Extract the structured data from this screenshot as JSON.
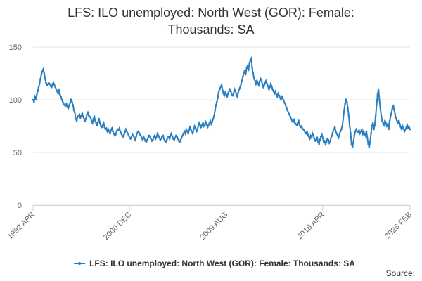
{
  "chart_data": {
    "type": "line",
    "title": "LFS: ILO unemployed: North West (GOR): Female: Thousands: SA",
    "source": "Source:",
    "categories": [
      "1992 APR",
      null,
      null,
      null,
      null,
      null,
      null,
      null,
      null,
      null,
      null,
      null,
      null,
      null,
      null,
      null,
      null,
      null,
      null,
      null,
      null,
      null,
      null,
      null,
      null,
      null,
      null,
      null,
      null,
      null,
      null,
      null,
      null,
      null,
      null,
      null,
      null,
      null,
      null,
      null,
      null,
      null,
      null,
      null,
      null,
      null,
      null,
      null,
      null,
      null,
      null,
      null,
      null,
      null,
      null,
      null,
      null,
      null,
      null,
      null,
      null,
      null,
      null,
      null,
      null,
      null,
      null,
      null,
      null,
      null,
      null,
      null,
      null,
      null,
      null,
      null,
      null,
      null,
      null,
      null,
      null,
      null,
      null,
      null,
      null,
      null,
      null,
      null,
      null,
      null,
      null,
      null,
      null,
      null,
      null,
      null,
      null,
      null,
      null,
      null,
      null,
      null,
      null,
      null,
      "2000 DEC",
      null,
      null,
      null,
      null,
      null,
      null,
      null,
      null,
      null,
      null,
      null,
      null,
      null,
      null,
      null,
      null,
      null,
      null,
      null,
      null,
      null,
      null,
      null,
      null,
      null,
      null,
      null,
      null,
      null,
      null,
      null,
      null,
      null,
      null,
      null,
      null,
      null,
      null,
      null,
      null,
      null,
      null,
      null,
      null,
      null,
      null,
      null,
      null,
      null,
      null,
      null,
      null,
      null,
      null,
      null,
      null,
      null,
      null,
      null,
      null,
      null,
      null,
      null,
      null,
      null,
      null,
      null,
      null,
      null,
      null,
      null,
      null,
      null,
      null,
      null,
      null,
      null,
      null,
      null,
      null,
      null,
      null,
      null,
      null,
      null,
      null,
      null,
      null,
      null,
      null,
      null,
      null,
      null,
      null,
      null,
      null,
      null,
      null,
      null,
      null,
      null,
      null,
      null,
      "2009 AUG",
      null,
      null,
      null,
      null,
      null,
      null,
      null,
      null,
      null,
      null,
      null,
      null,
      null,
      null,
      null,
      null,
      null,
      null,
      null,
      null,
      null,
      null,
      null,
      null,
      null,
      null,
      null,
      null,
      null,
      null,
      null,
      null,
      null,
      null,
      null,
      null,
      null,
      null,
      null,
      null,
      null,
      null,
      null,
      null,
      null,
      null,
      null,
      null,
      null,
      null,
      null,
      null,
      null,
      null,
      null,
      null,
      null,
      null,
      null,
      null,
      null,
      null,
      null,
      null,
      null,
      null,
      null,
      null,
      null,
      null,
      null,
      null,
      null,
      null,
      null,
      null,
      null,
      null,
      null,
      null,
      null,
      null,
      null,
      null,
      null,
      null,
      null,
      null,
      null,
      null,
      null,
      null,
      null,
      null,
      null,
      null,
      null,
      null,
      null,
      null,
      null,
      null,
      null,
      "2018 APR",
      null,
      null,
      null,
      null,
      null,
      null,
      null,
      null,
      null,
      null,
      null,
      null,
      null,
      null,
      null,
      null,
      null,
      null,
      null,
      null,
      null,
      null,
      null,
      null,
      null,
      null,
      null,
      null,
      null,
      null,
      null,
      null,
      null,
      null,
      null,
      null,
      null,
      null,
      null,
      null,
      null,
      null,
      null,
      null,
      null,
      null,
      null,
      null,
      null,
      null,
      null,
      null,
      null,
      null,
      null,
      null,
      null,
      null,
      null,
      null,
      null,
      null,
      null,
      null,
      null,
      null,
      null,
      null,
      null,
      null,
      null,
      null,
      null,
      null,
      null,
      null,
      null,
      null,
      null,
      null,
      null,
      null,
      null,
      null,
      null,
      null,
      null,
      null,
      null,
      null,
      null,
      null,
      null,
      "2026 FEB"
    ],
    "series": [
      {
        "name": "LFS: ILO unemployed: North West (GOR): Female: Thousands: SA",
        "color": "#2a7fc1",
        "values": [
          100,
          98,
          103,
          101,
          105,
          108,
          112,
          115,
          120,
          124,
          127,
          129,
          125,
          120,
          116,
          114,
          115,
          116,
          115,
          113,
          112,
          115,
          116,
          114,
          112,
          110,
          108,
          106,
          110,
          105,
          103,
          100,
          98,
          96,
          95,
          94,
          96,
          93,
          92,
          95,
          97,
          100,
          98,
          95,
          90,
          88,
          82,
          80,
          84,
          85,
          86,
          83,
          85,
          87,
          84,
          82,
          80,
          82,
          86,
          88,
          85,
          84,
          83,
          80,
          78,
          82,
          84,
          80,
          78,
          76,
          79,
          82,
          78,
          75,
          74,
          76,
          78,
          74,
          72,
          73,
          70,
          72,
          70,
          68,
          71,
          73,
          70,
          68,
          66,
          67,
          70,
          72,
          71,
          73,
          70,
          68,
          66,
          65,
          67,
          69,
          72,
          70,
          68,
          66,
          64,
          63,
          65,
          67,
          66,
          64,
          62,
          65,
          68,
          70,
          69,
          67,
          66,
          64,
          62,
          65,
          63,
          61,
          60,
          62,
          64,
          66,
          65,
          63,
          61,
          62,
          64,
          66,
          63,
          65,
          68,
          66,
          64,
          62,
          63,
          65,
          66,
          63,
          61,
          60,
          62,
          64,
          65,
          63,
          66,
          68,
          65,
          63,
          62,
          64,
          66,
          65,
          63,
          61,
          60,
          62,
          64,
          66,
          68,
          70,
          68,
          72,
          70,
          68,
          71,
          74,
          72,
          70,
          68,
          72,
          75,
          73,
          70,
          72,
          75,
          78,
          76,
          74,
          76,
          78,
          75,
          77,
          79,
          76,
          74,
          76,
          78,
          80,
          77,
          79,
          82,
          85,
          90,
          95,
          98,
          102,
          108,
          110,
          112,
          114,
          110,
          106,
          104,
          107,
          105,
          103,
          106,
          108,
          110,
          108,
          105,
          104,
          106,
          110,
          108,
          105,
          103,
          107,
          110,
          112,
          115,
          118,
          122,
          125,
          128,
          124,
          130,
          132,
          128,
          135,
          137,
          139,
          130,
          125,
          120,
          118,
          115,
          118,
          116,
          114,
          117,
          120,
          118,
          115,
          112,
          114,
          116,
          118,
          115,
          113,
          110,
          112,
          115,
          113,
          110,
          108,
          106,
          108,
          105,
          103,
          106,
          104,
          102,
          100,
          103,
          101,
          99,
          97,
          95,
          92,
          90,
          88,
          86,
          84,
          82,
          80,
          79,
          81,
          78,
          77,
          76,
          78,
          80,
          76,
          74,
          75,
          73,
          72,
          71,
          69,
          68,
          70,
          67,
          65,
          63,
          66,
          64,
          68,
          66,
          63,
          61,
          62,
          64,
          60,
          58,
          62,
          65,
          67,
          64,
          60,
          61,
          58,
          60,
          63,
          62,
          59,
          61,
          64,
          66,
          70,
          72,
          74,
          70,
          68,
          66,
          64,
          67,
          70,
          72,
          75,
          82,
          90,
          96,
          100,
          98,
          92,
          85,
          75,
          68,
          58,
          55,
          60,
          66,
          70,
          72,
          70,
          69,
          71,
          68,
          70,
          72,
          67,
          70,
          68,
          66,
          70,
          64,
          58,
          55,
          60,
          68,
          75,
          78,
          72,
          76,
          85,
          95,
          105,
          110,
          100,
          92,
          85,
          80,
          78,
          76,
          80,
          78,
          75,
          77,
          72,
          80,
          84,
          88,
          92,
          94,
          90,
          86,
          82,
          80,
          78,
          80,
          77,
          74,
          72,
          75,
          73,
          70,
          72,
          74,
          76,
          73,
          74,
          72
        ]
      }
    ],
    "ylim": [
      0,
      150
    ],
    "yticks": [
      0,
      50,
      100,
      150
    ],
    "grid": true
  }
}
